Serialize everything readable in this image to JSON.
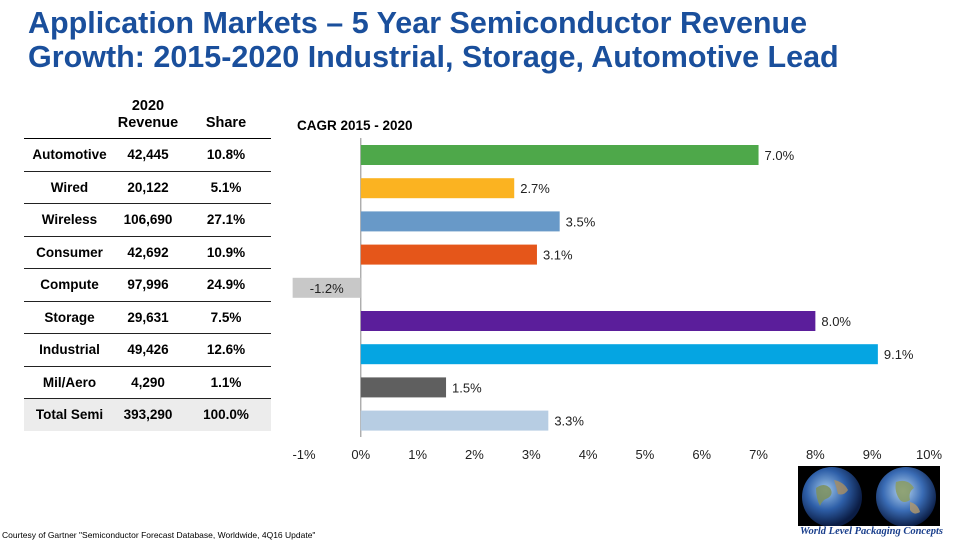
{
  "title": {
    "line1": "Application Markets – 5 Year Semiconductor Revenue",
    "line2": "Growth:  2015-2020  Industrial, Storage, Automotive Lead"
  },
  "table": {
    "headers": [
      "",
      "2020\nRevenue",
      "Share"
    ],
    "rows": [
      {
        "market": "Automotive",
        "revenue": "42,445",
        "share": "10.8%"
      },
      {
        "market": "Wired",
        "revenue": "20,122",
        "share": "5.1%"
      },
      {
        "market": "Wireless",
        "revenue": "106,690",
        "share": "27.1%"
      },
      {
        "market": "Consumer",
        "revenue": "42,692",
        "share": "10.9%"
      },
      {
        "market": "Compute",
        "revenue": "97,996",
        "share": "24.9%"
      },
      {
        "market": "Storage",
        "revenue": "29,631",
        "share": "7.5%"
      },
      {
        "market": "Industrial",
        "revenue": "49,426",
        "share": "12.6%"
      },
      {
        "market": "Mil/Aero",
        "revenue": "4,290",
        "share": "1.1%"
      },
      {
        "market": "Total Semi",
        "revenue": "393,290",
        "share": "100.0%"
      }
    ]
  },
  "chart_data": {
    "type": "bar",
    "orientation": "horizontal",
    "title": "CAGR 2015 - 2020",
    "categories": [
      "Automotive",
      "Wired",
      "Wireless",
      "Consumer",
      "Compute",
      "Storage",
      "Industrial",
      "Mil/Aero",
      "Total Semi"
    ],
    "values": [
      7.0,
      2.7,
      3.5,
      3.1,
      -1.2,
      8.0,
      9.1,
      1.5,
      3.3
    ],
    "data_labels": [
      "7.0%",
      "2.7%",
      "3.5%",
      "3.1%",
      "-1.2%",
      "8.0%",
      "9.1%",
      "1.5%",
      "3.3%"
    ],
    "colors": [
      "#4ea84a",
      "#fbb321",
      "#6899c8",
      "#e5561a",
      "#c8c8c8",
      "#5b1e9b",
      "#05a5e2",
      "#5f5f5f",
      "#b7cde3"
    ],
    "xlim": [
      -1,
      10
    ],
    "xticks": [
      "-1%",
      "0%",
      "1%",
      "2%",
      "3%",
      "4%",
      "5%",
      "6%",
      "7%",
      "8%",
      "9%",
      "10%"
    ],
    "grid": false,
    "legend": "none"
  },
  "footer": "Courtesy of Gartner \"Semiconductor Forecast Database, Worldwide, 4Q16 Update\"",
  "logo": {
    "caption": "World Level Packaging Concepts",
    "icon": "globe-icon"
  }
}
